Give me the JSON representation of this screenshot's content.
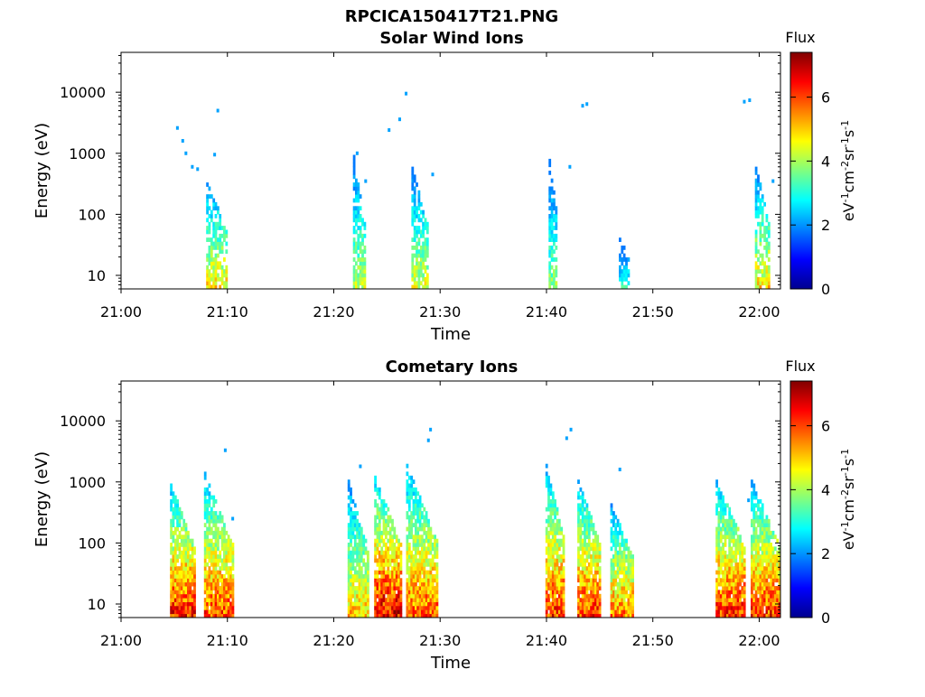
{
  "figure": {
    "title": "RPCICA150417T21.PNG"
  },
  "chart_data": [
    {
      "type": "heatmap",
      "title": "Solar Wind Ions",
      "xlabel": "Time",
      "ylabel": "Energy (eV)",
      "x_ticks": [
        "21:00",
        "21:10",
        "21:20",
        "21:30",
        "21:40",
        "21:50",
        "22:00"
      ],
      "x_range_min": [
        0,
        62
      ],
      "y_scale": "log",
      "y_ticks": [
        "10",
        "100",
        "1000",
        "10000"
      ],
      "y_range_ev": [
        6,
        45000
      ],
      "colorbar": {
        "label": "Flux",
        "units": "eV-1cm-2sr-1s-1",
        "ticks": [
          "0",
          "2",
          "4",
          "6"
        ],
        "range": [
          0,
          7.4
        ],
        "colormap": "jet"
      },
      "bursts": [
        {
          "t_start_min": 8.0,
          "t_end_min": 9.8,
          "e_min_ev": 6,
          "e_max_ev": 400,
          "flux_max": 5.2
        },
        {
          "t_start_min": 21.8,
          "t_end_min": 22.8,
          "e_min_ev": 6,
          "e_max_ev": 900,
          "flux_max": 4.6
        },
        {
          "t_start_min": 27.3,
          "t_end_min": 28.8,
          "e_min_ev": 6,
          "e_max_ev": 600,
          "flux_max": 4.8
        },
        {
          "t_start_min": 40.2,
          "t_end_min": 41.0,
          "e_min_ev": 6,
          "e_max_ev": 700,
          "flux_max": 4.2
        },
        {
          "t_start_min": 46.8,
          "t_end_min": 47.8,
          "e_min_ev": 6,
          "e_max_ev": 40,
          "flux_max": 3.4
        },
        {
          "t_start_min": 59.6,
          "t_end_min": 61.0,
          "e_min_ev": 6,
          "e_max_ev": 550,
          "flux_max": 5.3
        }
      ],
      "isolated_points": [
        {
          "t_min": 5.3,
          "e_ev": 2600
        },
        {
          "t_min": 5.8,
          "e_ev": 1600
        },
        {
          "t_min": 6.1,
          "e_ev": 1000
        },
        {
          "t_min": 6.7,
          "e_ev": 600
        },
        {
          "t_min": 7.2,
          "e_ev": 550
        },
        {
          "t_min": 8.8,
          "e_ev": 950
        },
        {
          "t_min": 9.1,
          "e_ev": 5000
        },
        {
          "t_min": 22.2,
          "e_ev": 1000
        },
        {
          "t_min": 23.0,
          "e_ev": 350
        },
        {
          "t_min": 25.2,
          "e_ev": 2400
        },
        {
          "t_min": 26.2,
          "e_ev": 3600
        },
        {
          "t_min": 26.8,
          "e_ev": 9500
        },
        {
          "t_min": 29.3,
          "e_ev": 450
        },
        {
          "t_min": 42.2,
          "e_ev": 600
        },
        {
          "t_min": 43.4,
          "e_ev": 6000
        },
        {
          "t_min": 43.8,
          "e_ev": 6400
        },
        {
          "t_min": 58.6,
          "e_ev": 7000
        },
        {
          "t_min": 59.1,
          "e_ev": 7400
        },
        {
          "t_min": 61.3,
          "e_ev": 350
        }
      ]
    },
    {
      "type": "heatmap",
      "title": "Cometary Ions",
      "xlabel": "Time",
      "ylabel": "Energy (eV)",
      "x_ticks": [
        "21:00",
        "21:10",
        "21:20",
        "21:30",
        "21:40",
        "21:50",
        "22:00"
      ],
      "x_range_min": [
        0,
        62
      ],
      "y_scale": "log",
      "y_ticks": [
        "10",
        "100",
        "1000",
        "10000"
      ],
      "y_range_ev": [
        6,
        45000
      ],
      "colorbar": {
        "label": "Flux",
        "units": "eV-1cm-2sr-1s-1",
        "ticks": [
          "0",
          "2",
          "4",
          "6"
        ],
        "range": [
          0,
          7.4
        ],
        "colormap": "jet"
      },
      "bursts": [
        {
          "t_start_min": 4.6,
          "t_end_min": 6.9,
          "e_min_ev": 6,
          "e_max_ev": 900,
          "flux_max": 7.0
        },
        {
          "t_start_min": 7.8,
          "t_end_min": 10.4,
          "e_min_ev": 6,
          "e_max_ev": 1300,
          "flux_max": 6.6
        },
        {
          "t_start_min": 21.3,
          "t_end_min": 23.1,
          "e_min_ev": 6,
          "e_max_ev": 1000,
          "flux_max": 5.6
        },
        {
          "t_start_min": 23.8,
          "t_end_min": 26.3,
          "e_min_ev": 6,
          "e_max_ev": 1200,
          "flux_max": 7.3
        },
        {
          "t_start_min": 26.8,
          "t_end_min": 29.6,
          "e_min_ev": 6,
          "e_max_ev": 1800,
          "flux_max": 6.5
        },
        {
          "t_start_min": 39.9,
          "t_end_min": 41.6,
          "e_min_ev": 6,
          "e_max_ev": 1800,
          "flux_max": 6.8
        },
        {
          "t_start_min": 42.9,
          "t_end_min": 45.1,
          "e_min_ev": 6,
          "e_max_ev": 1000,
          "flux_max": 6.8
        },
        {
          "t_start_min": 46.0,
          "t_end_min": 48.2,
          "e_min_ev": 6,
          "e_max_ev": 400,
          "flux_max": 6.2
        },
        {
          "t_start_min": 55.9,
          "t_end_min": 58.7,
          "e_min_ev": 6,
          "e_max_ev": 1000,
          "flux_max": 7.0
        },
        {
          "t_start_min": 59.2,
          "t_end_min": 61.9,
          "e_min_ev": 6,
          "e_max_ev": 1000,
          "flux_max": 6.8
        }
      ],
      "isolated_points": [
        {
          "t_min": 9.8,
          "e_ev": 3300
        },
        {
          "t_min": 10.5,
          "e_ev": 250
        },
        {
          "t_min": 22.5,
          "e_ev": 1800
        },
        {
          "t_min": 29.1,
          "e_ev": 7200
        },
        {
          "t_min": 28.9,
          "e_ev": 4800
        },
        {
          "t_min": 41.9,
          "e_ev": 5200
        },
        {
          "t_min": 42.3,
          "e_ev": 7200
        },
        {
          "t_min": 46.9,
          "e_ev": 1600
        },
        {
          "t_min": 59.0,
          "e_ev": 500
        }
      ]
    }
  ]
}
